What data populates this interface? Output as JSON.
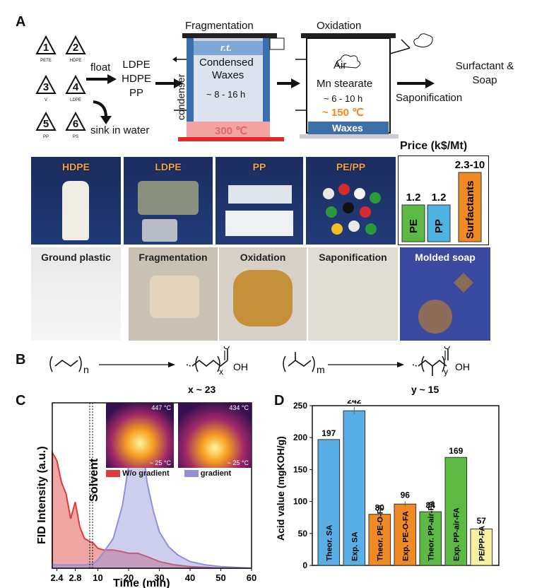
{
  "panelA": {
    "letter": "A",
    "recycling": [
      {
        "num": "1",
        "code": "PETE"
      },
      {
        "num": "2",
        "code": "HDPE"
      },
      {
        "num": "3",
        "code": "V"
      },
      {
        "num": "4",
        "code": "LDPE"
      },
      {
        "num": "5",
        "code": "PP"
      },
      {
        "num": "6",
        "code": "PS"
      }
    ],
    "float": "float",
    "float_products": [
      "LDPE",
      "HDPE",
      "PP"
    ],
    "sink": "sink in water",
    "fragmentation": {
      "title": "Fragmentation",
      "rt": "r.t.",
      "condensed": "Condensed",
      "waxes": "Waxes",
      "time": "~ 8 - 16 h",
      "condenser": "condenser",
      "temp": "300 ℃"
    },
    "oxidation": {
      "title": "Oxidation",
      "air": "Air",
      "catalyst": "Mn stearate",
      "time": "~ 6 - 10 h",
      "temp": "~ 150 ℃",
      "waxes": "Waxes"
    },
    "saponification": "Saponification",
    "products": "Surfactant & Soap",
    "photos_row1": [
      "HDPE",
      "LDPE",
      "PP",
      "PE/PP"
    ],
    "photos_row2": [
      "Ground plastic",
      "Fragmentation",
      "Oxidation",
      "Saponification",
      "Molded soap"
    ],
    "price": {
      "title": "Price (k$/Mt)",
      "bars": [
        {
          "label": "PE",
          "value": "1.2",
          "color": "#5cb944"
        },
        {
          "label": "PP",
          "value": "1.2",
          "color": "#4cb3e3"
        },
        {
          "label": "Surfactants",
          "value": "2.3-10",
          "color": "#f08a24"
        }
      ]
    }
  },
  "panelB": {
    "letter": "B",
    "left_sub": "n",
    "left_product_sub": "x",
    "left_oh": "OH",
    "left_o": "O",
    "left_caption": "x ~ 23",
    "right_sub": "m",
    "right_product_sub": "y",
    "right_oh": "OH",
    "right_o": "O",
    "right_caption": "y ~ 15"
  },
  "panelC": {
    "letter": "C",
    "ylabel": "FID Intensity (a.u.)",
    "xlabel": "Time (min)",
    "solvent": "Solvent",
    "thermal": {
      "left_max": "447 °C",
      "left_min": "~ 25 °C",
      "right_max": "434 °C",
      "right_min": "~ 25 °C"
    },
    "legend": [
      {
        "name": "W/o gradient",
        "color": "#e03a3a"
      },
      {
        "name": "gradient",
        "color": "#9090d8"
      }
    ],
    "ticks_left": [
      "2.4",
      "2.8"
    ],
    "ticks_right": [
      "10",
      "20",
      "30",
      "40",
      "50",
      "60"
    ]
  },
  "panelD": {
    "letter": "D"
  },
  "chart_data": [
    {
      "type": "area",
      "title": "",
      "xlabel": "Time (min)",
      "ylabel": "FID Intensity (a.u.)",
      "x_break": [
        3.1,
        8.5
      ],
      "series": [
        {
          "name": "W/o gradient",
          "color": "#e03a3a",
          "x": [
            2.3,
            2.4,
            2.5,
            2.6,
            2.7,
            2.8,
            2.9,
            3.0,
            8.6,
            10,
            12,
            15,
            18,
            20,
            23,
            26,
            30,
            35,
            40,
            45,
            50,
            60
          ],
          "y": [
            0.7,
            0.65,
            0.52,
            0.45,
            0.3,
            0.4,
            0.25,
            0.18,
            0.15,
            0.12,
            0.11,
            0.11,
            0.1,
            0.09,
            0.09,
            0.07,
            0.04,
            0.02,
            0.01,
            0.005,
            0.0,
            0.0
          ]
        },
        {
          "name": "gradient",
          "color": "#9090d8",
          "x": [
            2.3,
            2.5,
            2.8,
            3.0,
            8.6,
            10,
            12,
            15,
            18,
            20,
            21,
            22,
            23,
            24,
            25,
            26,
            28,
            30,
            33,
            36,
            40,
            45,
            50,
            60
          ],
          "y": [
            0.02,
            0.02,
            0.02,
            0.02,
            0.03,
            0.05,
            0.1,
            0.18,
            0.38,
            0.62,
            0.76,
            0.82,
            0.78,
            0.72,
            0.68,
            0.52,
            0.35,
            0.22,
            0.13,
            0.08,
            0.04,
            0.02,
            0.01,
            0.0
          ]
        }
      ]
    },
    {
      "type": "bar",
      "title": "",
      "xlabel": "",
      "ylabel": "Acid value (mgKOH/g)",
      "ylim": [
        0,
        250
      ],
      "yticks": [
        0,
        50,
        100,
        150,
        200,
        250
      ],
      "categories": [
        "Theor. SA",
        "Exp. SA",
        "Theor. PE-O-FA",
        "Exp. PE-O-FA",
        "Theor. PP-air-FA",
        "Exp. PP-air-FA",
        "PE/PP-FA"
      ],
      "values": [
        197,
        242,
        80,
        96,
        84,
        169,
        57
      ],
      "value_labels": [
        "197",
        "242",
        "80",
        "96",
        "84",
        "169",
        "57"
      ],
      "colors": [
        "#5aaee6",
        "#5aaee6",
        "#f08a24",
        "#f08a24",
        "#5cb944",
        "#5cb944",
        "#f7f0a0"
      ],
      "error": [
        0,
        6,
        0,
        4,
        0,
        0,
        3
      ]
    }
  ]
}
